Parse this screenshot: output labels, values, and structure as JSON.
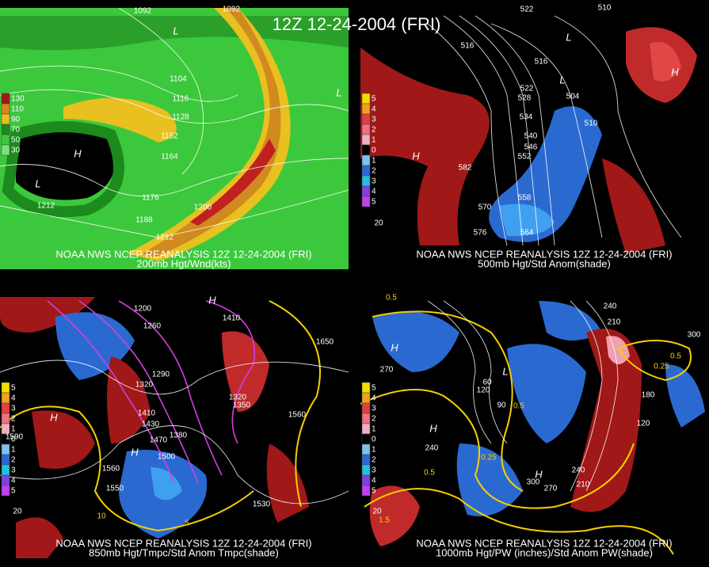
{
  "title": "12Z 12-24-2004 (FRI)",
  "panels": [
    {
      "caption": "NOAA NWS NCEP REANALYSIS 12Z 12-24-2004 (FRI)",
      "subcaption": "200mb Hgt/Wnd(kts)",
      "legend": [
        "130",
        "110",
        "90",
        "70",
        "50",
        "30"
      ],
      "labels": [
        "1092",
        "1092",
        "1104",
        "1116",
        "1128",
        "1152",
        "1164",
        "1176",
        "1188",
        "1200",
        "1212",
        "1212",
        "H",
        "L",
        "L",
        "L"
      ]
    },
    {
      "caption": "NOAA NWS NCEP REANALYSIS 12Z 12-24-2004 (FRI)",
      "subcaption": "500mb Hgt/Std Anom(shade)",
      "legend": [
        "5",
        "4",
        "3",
        "2",
        "1",
        "0",
        "1",
        "2",
        "3",
        "4",
        "5"
      ],
      "labels": [
        "522",
        "516",
        "516",
        "522",
        "528",
        "534",
        "540",
        "546",
        "552",
        "558",
        "564",
        "570",
        "576",
        "582",
        "510",
        "504",
        "510",
        "20",
        "H",
        "H",
        "L",
        "L"
      ]
    },
    {
      "caption": "NOAA NWS NCEP REANALYSIS 12Z 12-24-2004 (FRI)",
      "subcaption": "850mb Hgt/Tmpc/Std Anom Tmpc(shade)",
      "legend": [
        "5",
        "4",
        "3",
        "2",
        "1",
        "0",
        "1",
        "2",
        "3",
        "4",
        "5"
      ],
      "labels": [
        "1200",
        "1260",
        "1290",
        "1320",
        "1410",
        "1430",
        "1470",
        "1380",
        "1500",
        "1560",
        "1550",
        "1590",
        "1560",
        "1530",
        "1350",
        "1320",
        "1410",
        "1650",
        "10",
        "5",
        "20",
        "H",
        "H",
        "H"
      ]
    },
    {
      "caption": "NOAA NWS NCEP REANALYSIS 12Z 12-24-2004 (FRI)",
      "subcaption": "1000mb Hgt/PW (inches)/Std Anom PW(shade)",
      "legend": [
        "5",
        "4",
        "3",
        "2",
        "1",
        "0",
        "1",
        "2",
        "3",
        "4",
        "5"
      ],
      "labels": [
        "0.5",
        "270",
        "240",
        "120",
        "60",
        "90",
        "0.5",
        "0.25",
        "0.5",
        "1.5",
        "300",
        "270",
        "210",
        "240",
        "210",
        "240",
        "300",
        "0.5",
        "0.25",
        "180",
        "120",
        "20",
        "H",
        "H",
        "H",
        "L"
      ]
    }
  ]
}
